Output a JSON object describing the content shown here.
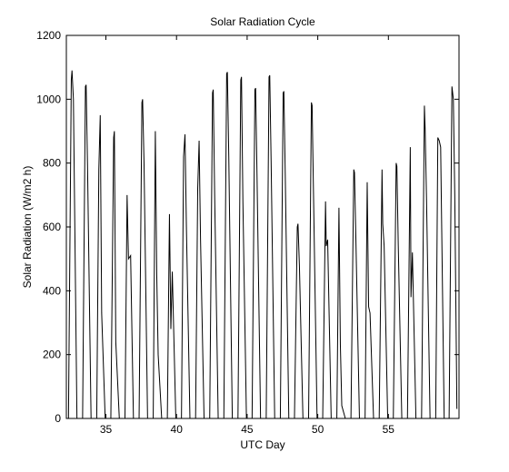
{
  "chart_data": {
    "type": "line",
    "title": "Solar Radiation Cycle",
    "xlabel": "UTC Day",
    "ylabel": "Solar Radiation (W/m2 h)",
    "xlim": [
      32.2,
      60.0
    ],
    "ylim": [
      0,
      1200
    ],
    "xticks": [
      35,
      40,
      45,
      50,
      55
    ],
    "yticks": [
      0,
      200,
      400,
      600,
      800,
      1000,
      1200
    ],
    "grid": false,
    "line_color": "#000000",
    "daily_peaks": [
      {
        "day": 32,
        "x": [
          32.35,
          32.55,
          32.6,
          32.7,
          32.95
        ],
        "y": [
          0,
          1060,
          1090,
          1000,
          0
        ]
      },
      {
        "day": 33,
        "x": [
          33.35,
          33.55,
          33.6,
          33.7,
          33.95
        ],
        "y": [
          0,
          1040,
          1045,
          790,
          0
        ]
      },
      {
        "day": 34,
        "x": [
          34.35,
          34.5,
          34.6,
          34.7,
          34.95
        ],
        "y": [
          0,
          780,
          950,
          330,
          0
        ]
      },
      {
        "day": 35,
        "x": [
          35.35,
          35.55,
          35.6,
          35.7,
          35.95
        ],
        "y": [
          0,
          880,
          900,
          240,
          0
        ]
      },
      {
        "day": 36,
        "x": [
          36.35,
          36.5,
          36.6,
          36.75,
          36.95
        ],
        "y": [
          0,
          700,
          500,
          510,
          0
        ]
      },
      {
        "day": 37,
        "x": [
          37.35,
          37.55,
          37.6,
          37.7,
          37.95
        ],
        "y": [
          0,
          990,
          1000,
          800,
          0
        ]
      },
      {
        "day": 38,
        "x": [
          38.35,
          38.5,
          38.6,
          38.7,
          38.95
        ],
        "y": [
          0,
          900,
          450,
          200,
          0
        ]
      },
      {
        "day": 39,
        "x": [
          39.35,
          39.5,
          39.6,
          39.7,
          39.95
        ],
        "y": [
          0,
          640,
          280,
          460,
          0
        ]
      },
      {
        "day": 40,
        "x": [
          40.35,
          40.5,
          40.6,
          40.7,
          40.95
        ],
        "y": [
          0,
          820,
          890,
          600,
          0
        ]
      },
      {
        "day": 41,
        "x": [
          41.35,
          41.5,
          41.6,
          41.7,
          41.95
        ],
        "y": [
          0,
          720,
          870,
          560,
          0
        ]
      },
      {
        "day": 42,
        "x": [
          42.35,
          42.55,
          42.6,
          42.7,
          42.95
        ],
        "y": [
          0,
          1020,
          1030,
          700,
          0
        ]
      },
      {
        "day": 43,
        "x": [
          43.35,
          43.55,
          43.6,
          43.7,
          43.95
        ],
        "y": [
          0,
          1080,
          1085,
          820,
          0
        ]
      },
      {
        "day": 44,
        "x": [
          44.35,
          44.55,
          44.6,
          44.7,
          44.95
        ],
        "y": [
          0,
          1060,
          1070,
          680,
          0
        ]
      },
      {
        "day": 45,
        "x": [
          45.35,
          45.55,
          45.6,
          45.7,
          45.95
        ],
        "y": [
          0,
          1030,
          1035,
          760,
          0
        ]
      },
      {
        "day": 46,
        "x": [
          46.35,
          46.55,
          46.6,
          46.7,
          46.95
        ],
        "y": [
          0,
          1070,
          1075,
          800,
          0
        ]
      },
      {
        "day": 47,
        "x": [
          47.35,
          47.55,
          47.6,
          47.7,
          47.95
        ],
        "y": [
          0,
          1020,
          1025,
          760,
          0
        ]
      },
      {
        "day": 48,
        "x": [
          48.35,
          48.55,
          48.6,
          48.7,
          48.95
        ],
        "y": [
          0,
          600,
          610,
          480,
          0
        ]
      },
      {
        "day": 49,
        "x": [
          49.35,
          49.55,
          49.6,
          49.7,
          49.95
        ],
        "y": [
          0,
          990,
          980,
          700,
          0
        ]
      },
      {
        "day": 50,
        "x": [
          50.35,
          50.55,
          50.6,
          50.7,
          50.95
        ],
        "y": [
          0,
          680,
          540,
          560,
          0
        ]
      },
      {
        "day": 51,
        "x": [
          51.35,
          51.5,
          51.6,
          51.7,
          51.95
        ],
        "y": [
          0,
          660,
          230,
          40,
          0
        ]
      },
      {
        "day": 52,
        "x": [
          52.35,
          52.55,
          52.6,
          52.7,
          52.95
        ],
        "y": [
          0,
          780,
          770,
          560,
          0
        ]
      },
      {
        "day": 53,
        "x": [
          53.35,
          53.5,
          53.6,
          53.7,
          53.95
        ],
        "y": [
          0,
          740,
          350,
          330,
          0
        ]
      },
      {
        "day": 54,
        "x": [
          54.35,
          54.55,
          54.6,
          54.7,
          54.95
        ],
        "y": [
          0,
          780,
          610,
          540,
          0
        ]
      },
      {
        "day": 55,
        "x": [
          55.35,
          55.55,
          55.6,
          55.7,
          55.95
        ],
        "y": [
          0,
          800,
          790,
          540,
          0
        ]
      },
      {
        "day": 56,
        "x": [
          56.35,
          56.55,
          56.6,
          56.7,
          56.95
        ],
        "y": [
          0,
          850,
          380,
          520,
          0
        ]
      },
      {
        "day": 57,
        "x": [
          57.35,
          57.55,
          57.6,
          57.7,
          57.95
        ],
        "y": [
          0,
          980,
          910,
          690,
          0
        ]
      },
      {
        "day": 58,
        "x": [
          58.35,
          58.5,
          58.6,
          58.7,
          58.95
        ],
        "y": [
          0,
          880,
          870,
          850,
          0
        ]
      },
      {
        "day": 59,
        "x": [
          59.3,
          59.5,
          59.6,
          59.7,
          59.85
        ],
        "y": [
          0,
          1040,
          1000,
          700,
          30
        ]
      }
    ]
  }
}
